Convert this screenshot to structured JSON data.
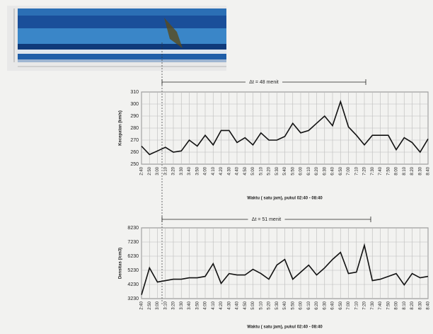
{
  "chart_data": [
    {
      "type": "line",
      "ylabel": "Kecepatan (km/s)",
      "xlabel": "Waktu ( satu jam), pukul 02:40 - 08:40",
      "annotation": "Δt = 48 menit",
      "categories": [
        "2:40",
        "2:50",
        "3:00",
        "3:10",
        "3:20",
        "3:30",
        "3:40",
        "3:50",
        "4:00",
        "4:10",
        "4:20",
        "4:30",
        "4:40",
        "4:50",
        "5:00",
        "5:10",
        "5:20",
        "5:30",
        "5:40",
        "5:50",
        "6:00",
        "6:10",
        "6:20",
        "6:30",
        "6:40",
        "6:50",
        "7:00",
        "7:10",
        "7:20",
        "7:30",
        "7:40",
        "7:50",
        "8:00",
        "8:10",
        "8:20",
        "8:30",
        "8:40"
      ],
      "values": [
        265,
        258,
        261,
        264,
        260,
        261,
        270,
        265,
        274,
        266,
        278,
        278,
        268,
        272,
        266,
        276,
        270,
        270,
        273,
        284,
        276,
        278,
        284,
        290,
        282,
        302,
        281,
        274,
        266,
        274,
        274,
        274,
        262,
        272,
        268,
        260,
        271
      ],
      "color": "#111",
      "ylim": [
        250,
        310
      ],
      "yticks": [
        250,
        260,
        270,
        280,
        290,
        300,
        310
      ],
      "grid": true
    },
    {
      "type": "line",
      "ylabel": "Densitas (/cm3)",
      "xlabel": "Waktu ( satu jam), pukul 02:40 - 08:40",
      "annotation": "Δt = 51 menit",
      "categories": [
        "2:40",
        "2:50",
        "3:00",
        "3:10",
        "3:20",
        "3:30",
        "3:40",
        "3:50",
        "4:00",
        "4:10",
        "4:20",
        "4:30",
        "4:40",
        "4:50",
        "5:00",
        "5:10",
        "5:20",
        "5:30",
        "5:40",
        "5:50",
        "6:00",
        "6:10",
        "6:20",
        "6:30",
        "6:40",
        "6:50",
        "7:00",
        "7:10",
        "7:20",
        "7:30",
        "7:40",
        "7:50",
        "8:00",
        "8:10",
        "8:20",
        "8:30",
        "8:40"
      ],
      "values": [
        3500,
        5400,
        4400,
        4500,
        4600,
        4600,
        4700,
        4700,
        4800,
        5700,
        4300,
        5000,
        4900,
        4900,
        5300,
        5000,
        4600,
        5600,
        6000,
        4600,
        5100,
        5600,
        4900,
        5400,
        6000,
        6500,
        5000,
        5100,
        7000,
        4500,
        4600,
        4800,
        5000,
        4200,
        5000,
        4700,
        4800
      ],
      "color": "#111",
      "ylim": [
        3230,
        8230
      ],
      "yticks": [
        3230,
        4230,
        5230,
        6230,
        7230,
        8230
      ],
      "grid": true
    }
  ]
}
